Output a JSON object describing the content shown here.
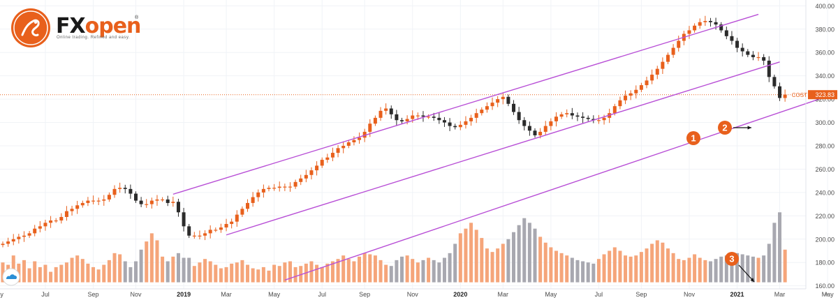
{
  "brand": {
    "part1": "FX",
    "part2": "open",
    "tagline": "Online trading. Refined and easy.",
    "registered": "®",
    "brand_color": "#e8601c"
  },
  "price_label": {
    "symbol": "COST",
    "value": "323.83",
    "color": "#e8601c"
  },
  "markers": [
    "1",
    "2",
    "3"
  ],
  "colors": {
    "up": "#e8601c",
    "down": "#2b2b2b",
    "vol_up": "#f5a57a",
    "vol_down": "#a8a8b0",
    "channel": "#b84fd6"
  },
  "chart_data": {
    "type": "candlestick",
    "title": "",
    "y_axis": {
      "min": 155,
      "max": 405,
      "ticks": [
        160,
        180,
        200,
        220,
        240,
        260,
        280,
        300,
        320,
        340,
        360,
        380,
        400
      ],
      "tick_labels": [
        "160.00",
        "180.00",
        "200.00",
        "220.00",
        "240.00",
        "260.00",
        "280.00",
        "300.00",
        "320.00",
        "340.00",
        "360.00",
        "380.00",
        "400.00"
      ]
    },
    "x_axis": {
      "tick_labels": [
        "May",
        "Jul",
        "Sep",
        "Nov",
        "2019",
        "Mar",
        "May",
        "Jul",
        "Sep",
        "Nov",
        "2020",
        "Mar",
        "May",
        "Jul",
        "Sep",
        "Nov",
        "2021",
        "Mar",
        "May"
      ]
    },
    "x_tick_index": [
      -1,
      8,
      17,
      25,
      34,
      42,
      51,
      60,
      68,
      77,
      86,
      94,
      103,
      112,
      120,
      129,
      138,
      146,
      155
    ],
    "last_price": 323.83,
    "closes": [
      196,
      198,
      200,
      202,
      203,
      205,
      209,
      211,
      214,
      216,
      216,
      219,
      224,
      226,
      229,
      231,
      233,
      233,
      233,
      234,
      238,
      243,
      244,
      243,
      239,
      233,
      230,
      230,
      233,
      234,
      234,
      231,
      232,
      223,
      211,
      203,
      203,
      203,
      205,
      208,
      208,
      210,
      213,
      215,
      221,
      226,
      231,
      236,
      240,
      243,
      244,
      244,
      245,
      245,
      245,
      249,
      252,
      255,
      259,
      263,
      268,
      270,
      274,
      278,
      280,
      283,
      285,
      287,
      292,
      299,
      304,
      310,
      312,
      307,
      302,
      301,
      303,
      306,
      306,
      305,
      305,
      304,
      302,
      300,
      297,
      296,
      298,
      301,
      304,
      308,
      311,
      314,
      317,
      320,
      322,
      316,
      309,
      302,
      297,
      293,
      289,
      292,
      297,
      301,
      305,
      307,
      308,
      306,
      305,
      304,
      303,
      302,
      302,
      304,
      308,
      314,
      319,
      323,
      325,
      328,
      332,
      336,
      341,
      346,
      352,
      358,
      364,
      370,
      376,
      379,
      383,
      386,
      387,
      386,
      384,
      379,
      374,
      370,
      364,
      361,
      358,
      356,
      356,
      353,
      339,
      331,
      321,
      323.83
    ],
    "volume": [
      180,
      178,
      186,
      179,
      182,
      175,
      181,
      176,
      178,
      172,
      176,
      178,
      180,
      184,
      186,
      183,
      179,
      176,
      174,
      178,
      182,
      188,
      187,
      181,
      176,
      181,
      191,
      198,
      205,
      199,
      185,
      181,
      185,
      188,
      184,
      184,
      177,
      180,
      183,
      181,
      178,
      175,
      176,
      179,
      180,
      182,
      178,
      175,
      174,
      176,
      173,
      178,
      177,
      180,
      181,
      176,
      177,
      179,
      181,
      178,
      176,
      179,
      181,
      183,
      186,
      183,
      181,
      185,
      188,
      187,
      186,
      182,
      178,
      177,
      182,
      185,
      186,
      183,
      180,
      182,
      184,
      182,
      180,
      184,
      188,
      196,
      205,
      209,
      214,
      208,
      201,
      192,
      189,
      192,
      196,
      200,
      206,
      212,
      218,
      214,
      209,
      202,
      197,
      193,
      190,
      188,
      186,
      184,
      182,
      181,
      180,
      179,
      183,
      187,
      190,
      193,
      190,
      186,
      185,
      186,
      189,
      192,
      196,
      199,
      197,
      192,
      188,
      183,
      182,
      184,
      187,
      184,
      182,
      181,
      183,
      185,
      186,
      187,
      188,
      187,
      186,
      185,
      184,
      186,
      196,
      214,
      223,
      191
    ],
    "channels": [
      {
        "name": "",
        "points": [
          [
            32,
            238.5
          ],
          [
            142,
            392.7
          ]
        ]
      },
      {
        "name": "",
        "points": [
          [
            42,
            203.6
          ],
          [
            146,
            351.9
          ]
        ]
      },
      {
        "name": "",
        "points": [
          [
            53,
            164.9
          ],
          [
            155,
            322.5
          ]
        ]
      }
    ]
  }
}
